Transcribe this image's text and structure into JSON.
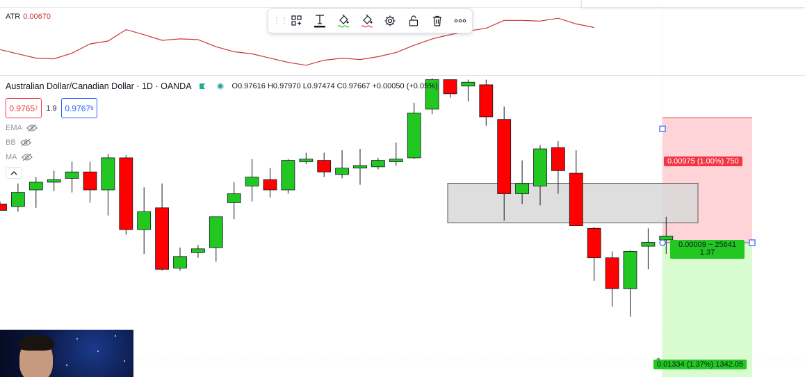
{
  "atr": {
    "label": "ATR",
    "value": "0.00670",
    "line_color": "#cc3333"
  },
  "floating_toolbar": {
    "items": [
      {
        "name": "drag-handle-icon"
      },
      {
        "name": "object-tree-icon"
      },
      {
        "name": "text-tool-icon"
      },
      {
        "name": "fill-color-icon"
      },
      {
        "name": "line-color-icon"
      },
      {
        "name": "settings-gear-icon"
      },
      {
        "name": "lock-open-icon"
      },
      {
        "name": "trash-icon"
      },
      {
        "name": "more-options-icon"
      }
    ]
  },
  "symbol": {
    "name": "Australian Dollar/Canadian Dollar",
    "separator1": "·",
    "interval": "1D",
    "separator2": "·",
    "exchange": "OANDA",
    "ohlc": {
      "open_label": "O",
      "open": "0.97616",
      "high_label": "H",
      "high": "0.97970",
      "low_label": "L",
      "low": "0.97474",
      "close_label": "C",
      "close": "0.97667",
      "change": "+0.00050 (+0.05%)"
    }
  },
  "trade_panel": {
    "sell_price_main": "0.9765",
    "sell_price_sup": "7",
    "spread": "1.9",
    "buy_price_main": "0.9767",
    "buy_price_sup": "6"
  },
  "indicators": [
    {
      "name": "EMA"
    },
    {
      "name": "BB"
    },
    {
      "name": "MA"
    }
  ],
  "colors": {
    "up": "#22c722",
    "down": "#ff0000",
    "stop_zone": "#ffcdd2",
    "target_zone": "#d9fbd0",
    "supply_zone": "#d8d8d8"
  },
  "position_tool": {
    "stop_label": "0.00975 (1.00%) 750",
    "ratio_label_line1": "0.00009 ~ 25641",
    "ratio_label_line2": "1.37",
    "target_label": "0.01334 (1.37%) 1342.05"
  },
  "chart_data": {
    "type": "candlestick",
    "price_range": [
      0.9565,
      0.98
    ],
    "candles": [
      {
        "o": 0.97,
        "h": 0.9702,
        "l": 0.9696,
        "c": 0.9695
      },
      {
        "o": 0.9698,
        "h": 0.9716,
        "l": 0.9694,
        "c": 0.9709
      },
      {
        "o": 0.9711,
        "h": 0.9721,
        "l": 0.9697,
        "c": 0.9717
      },
      {
        "o": 0.9717,
        "h": 0.9726,
        "l": 0.971,
        "c": 0.9719
      },
      {
        "o": 0.972,
        "h": 0.9733,
        "l": 0.9709,
        "c": 0.9725
      },
      {
        "o": 0.9725,
        "h": 0.9733,
        "l": 0.9701,
        "c": 0.9711
      },
      {
        "o": 0.9711,
        "h": 0.9739,
        "l": 0.9691,
        "c": 0.9736
      },
      {
        "o": 0.9736,
        "h": 0.9738,
        "l": 0.9676,
        "c": 0.968
      },
      {
        "o": 0.968,
        "h": 0.9713,
        "l": 0.9661,
        "c": 0.9694
      },
      {
        "o": 0.9697,
        "h": 0.9716,
        "l": 0.9648,
        "c": 0.9649
      },
      {
        "o": 0.965,
        "h": 0.9666,
        "l": 0.9648,
        "c": 0.9659
      },
      {
        "o": 0.9662,
        "h": 0.9668,
        "l": 0.9658,
        "c": 0.9665
      },
      {
        "o": 0.9666,
        "h": 0.969,
        "l": 0.9655,
        "c": 0.969
      },
      {
        "o": 0.9701,
        "h": 0.9717,
        "l": 0.9688,
        "c": 0.9708
      },
      {
        "o": 0.9714,
        "h": 0.9735,
        "l": 0.9702,
        "c": 0.9721
      },
      {
        "o": 0.9719,
        "h": 0.9728,
        "l": 0.9705,
        "c": 0.9711
      },
      {
        "o": 0.9711,
        "h": 0.9735,
        "l": 0.9708,
        "c": 0.9734
      },
      {
        "o": 0.9733,
        "h": 0.974,
        "l": 0.9731,
        "c": 0.9735
      },
      {
        "o": 0.9734,
        "h": 0.974,
        "l": 0.9721,
        "c": 0.9725
      },
      {
        "o": 0.9723,
        "h": 0.9742,
        "l": 0.972,
        "c": 0.9728
      },
      {
        "o": 0.9728,
        "h": 0.9743,
        "l": 0.9715,
        "c": 0.973
      },
      {
        "o": 0.9729,
        "h": 0.9736,
        "l": 0.9727,
        "c": 0.9734
      },
      {
        "o": 0.9733,
        "h": 0.9748,
        "l": 0.973,
        "c": 0.9735
      },
      {
        "o": 0.9736,
        "h": 0.9779,
        "l": 0.9735,
        "c": 0.9771
      },
      {
        "o": 0.9774,
        "h": 0.9798,
        "l": 0.977,
        "c": 0.9797
      },
      {
        "o": 0.9797,
        "h": 0.9797,
        "l": 0.9783,
        "c": 0.9786
      },
      {
        "o": 0.9792,
        "h": 0.9797,
        "l": 0.978,
        "c": 0.9795
      },
      {
        "o": 0.9793,
        "h": 0.9797,
        "l": 0.9761,
        "c": 0.9768
      },
      {
        "o": 0.9766,
        "h": 0.9776,
        "l": 0.9687,
        "c": 0.9708
      },
      {
        "o": 0.9708,
        "h": 0.9734,
        "l": 0.97,
        "c": 0.9716
      },
      {
        "o": 0.9714,
        "h": 0.9746,
        "l": 0.9699,
        "c": 0.9743
      },
      {
        "o": 0.9744,
        "h": 0.9749,
        "l": 0.9708,
        "c": 0.9726
      },
      {
        "o": 0.9724,
        "h": 0.9742,
        "l": 0.9683,
        "c": 0.9683
      },
      {
        "o": 0.9681,
        "h": 0.9682,
        "l": 0.964,
        "c": 0.9658
      },
      {
        "o": 0.9658,
        "h": 0.9663,
        "l": 0.962,
        "c": 0.9634
      },
      {
        "o": 0.9634,
        "h": 0.9664,
        "l": 0.9612,
        "c": 0.9663
      },
      {
        "o": 0.9667,
        "h": 0.9681,
        "l": 0.9649,
        "c": 0.967
      },
      {
        "o": 0.9672,
        "h": 0.969,
        "l": 0.9661,
        "c": 0.9675
      }
    ],
    "atr_series": [
      0.00648,
      0.00642,
      0.00636,
      0.00635,
      0.00643,
      0.00656,
      0.0066,
      0.00676,
      0.00669,
      0.00661,
      0.00663,
      0.00662,
      0.00652,
      0.00645,
      0.00642,
      0.00636,
      0.0063,
      0.00626,
      0.00633,
      0.00636,
      0.00634,
      0.00638,
      0.00644,
      0.00654,
      0.00663,
      0.00669,
      0.00674,
      0.00678,
      0.00689,
      0.00689,
      0.00688,
      0.00692,
      0.00684,
      0.00679
    ],
    "atr_range": [
      0.00618,
      0.00702
    ],
    "supply_zone": {
      "top": 0.97161,
      "bottom": 0.96853
    },
    "position": {
      "entry": 0.96698,
      "stop": 0.97673,
      "target": 0.95364
    }
  }
}
